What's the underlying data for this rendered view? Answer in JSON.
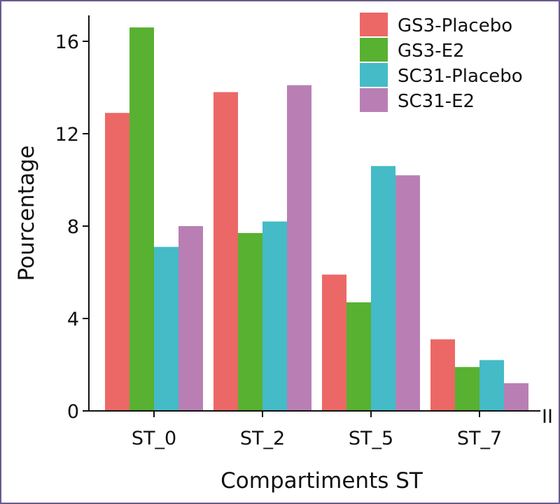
{
  "chart_data": {
    "type": "bar",
    "xlabel": "Compartiments ST",
    "ylabel": "Pourcentage",
    "ylim": [
      0,
      17
    ],
    "yticks": [
      0,
      4,
      8,
      12,
      16
    ],
    "grid": false,
    "legend_position": "top-right",
    "categories": [
      "ST_0",
      "ST_2",
      "ST_5",
      "ST_7"
    ],
    "series": [
      {
        "name": "GS3-Placebo",
        "color": "#ec6866",
        "values": [
          12.9,
          13.8,
          5.9,
          3.1
        ]
      },
      {
        "name": "GS3-E2",
        "color": "#58b130",
        "values": [
          16.6,
          7.7,
          4.7,
          1.9
        ]
      },
      {
        "name": "SC31-Placebo",
        "color": "#44bbc7",
        "values": [
          7.1,
          8.2,
          10.6,
          2.2
        ]
      },
      {
        "name": "SC31-E2",
        "color": "#b97fb4",
        "values": [
          8.0,
          14.1,
          10.2,
          1.2
        ]
      }
    ],
    "corner_mark": "II"
  }
}
